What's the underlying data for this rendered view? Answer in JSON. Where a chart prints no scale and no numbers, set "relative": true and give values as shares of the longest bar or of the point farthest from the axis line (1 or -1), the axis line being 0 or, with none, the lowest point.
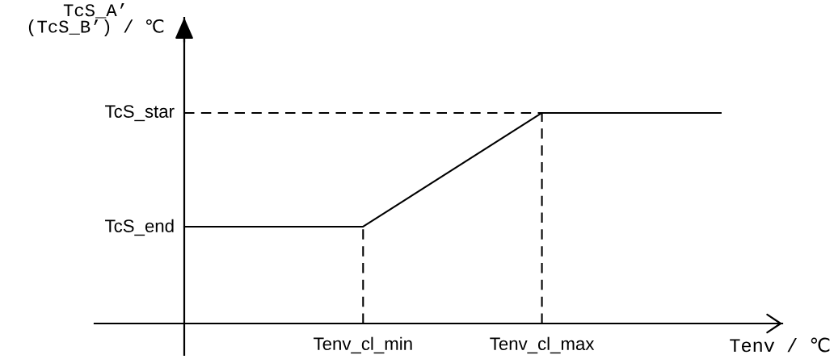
{
  "chart_data": {
    "type": "line",
    "xlabel": "Tenv / ℃",
    "ylabel": "TcS_A’\n(TcS_B’) / ℃",
    "categories": [
      null,
      "Tenv_cl_min",
      "Tenv_cl_max",
      null
    ],
    "relative": true,
    "series": [
      {
        "color": "#000000",
        "values": [
          0.46,
          0.46,
          1,
          1
        ]
      }
    ],
    "annotations": [
      "TcS_star",
      "TcS_end"
    ],
    "ref_lines": [
      {
        "axis": "x",
        "value": "Tenv_cl_min",
        "color": "#000000",
        "line_style": "dashed"
      },
      {
        "axis": "x",
        "value": "Tenv_cl_max",
        "color": "#000000",
        "line_style": "dashed"
      },
      {
        "axis": "y",
        "value": 1,
        "color": "#000000",
        "line_style": "dashed"
      }
    ],
    "line_style": "solid"
  }
}
